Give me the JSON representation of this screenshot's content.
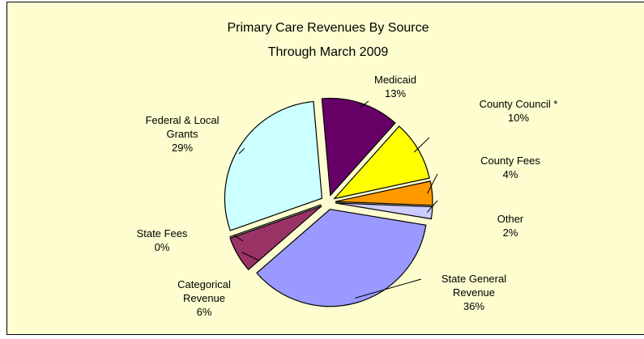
{
  "chart_data": {
    "type": "pie",
    "title": "Primary Care Revenues By Source Through March 2009",
    "categories": [
      "Medicaid",
      "County Council *",
      "County Fees",
      "Other",
      "State General Revenue",
      "Categorical Revenue",
      "State Fees",
      "Federal & Local Grants"
    ],
    "values": [
      13,
      10,
      4,
      2,
      36,
      6,
      0,
      29
    ],
    "value_labels": [
      "13%",
      "10%",
      "4%",
      "2%",
      "36%",
      "6%",
      "0%",
      "29%"
    ],
    "colors": [
      "#660066",
      "#ffff00",
      "#ff9900",
      "#ccccff",
      "#9999ff",
      "#993366",
      "#ffffff",
      "#ccffff"
    ]
  }
}
